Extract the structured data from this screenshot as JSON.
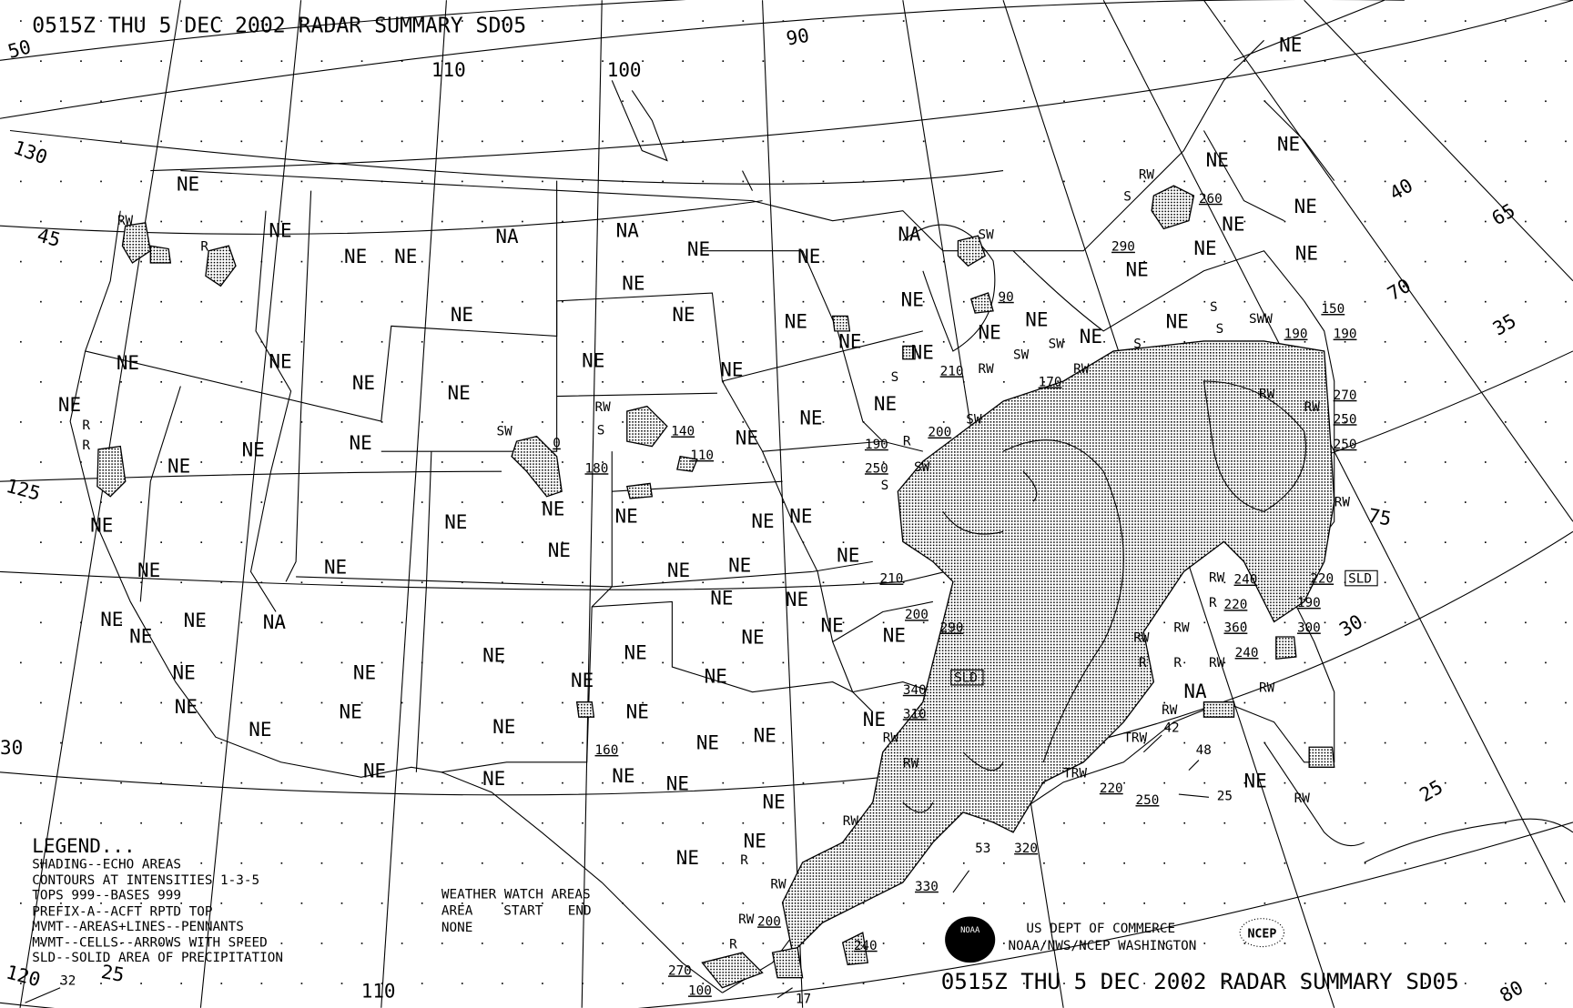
{
  "header": {
    "title": "0515Z THU  5 DEC 2002 RADAR SUMMARY SD05"
  },
  "footer": {
    "title": "0515Z THU  5 DEC 2002 RADAR SUMMARY SD05",
    "agency_line1": "US DEPT OF COMMERCE",
    "agency_line2": "NOAA/NWS/NCEP WASHINGTON",
    "noaa_logo_text": "NOAA",
    "ncep_logo_text": "NCEP"
  },
  "legend": {
    "title": "LEGEND...",
    "lines": [
      "SHADING--ECHO AREAS",
      "CONTOURS AT INTENSITIES 1-3-5",
      "TOPS 999--BASES 999",
      "PREFIX-A--ACFT RPTD TOP",
      "MVMT--AREAS+LINES--PENNANTS",
      "MVMT--CELLS--ARROWS WITH SPEED",
      "SLD--SOLID AREA OF PRECIPITATION"
    ]
  },
  "watch_areas": {
    "title": "WEATHER WATCH AREAS",
    "columns": [
      "AREA",
      "START",
      "END"
    ],
    "value": "NONE"
  },
  "graticule_labels": [
    "50",
    "130",
    "45",
    "125",
    "120",
    "30",
    "25",
    "110",
    "110",
    "100",
    "90",
    "40",
    "65",
    "70",
    "35",
    "75",
    "30",
    "25",
    "80"
  ],
  "region_labels": [
    "NE",
    "NE",
    "NE",
    "NE",
    "NE",
    "NE",
    "NE",
    "NE",
    "NE",
    "NE",
    "NE",
    "NE",
    "NE",
    "NE",
    "NE",
    "NE",
    "NE",
    "NE",
    "NE",
    "NE",
    "NE",
    "NE",
    "NE",
    "NE",
    "NE",
    "NA",
    "NE",
    "NE",
    "NE",
    "NE",
    "NE",
    "NE",
    "NE",
    "NE",
    "NE",
    "NE",
    "NE",
    "NE",
    "NE",
    "NE",
    "NE",
    "NE",
    "NE",
    "NE",
    "NE",
    "NE",
    "NE",
    "NE",
    "NE",
    "NE",
    "NE",
    "NE",
    "NE",
    "NE",
    "NE",
    "NE",
    "NE",
    "NE",
    "NA",
    "NA",
    "NE",
    "NE",
    "NA",
    "NE",
    "NE",
    "NE",
    "NE",
    "NE",
    "NE",
    "NE",
    "NE",
    "NE",
    "NE",
    "NE",
    "NE",
    "NE",
    "NE",
    "NE",
    "NE",
    "NE",
    "NE",
    "NE",
    "NA",
    "NE",
    "NE"
  ],
  "echo_tops": [
    "260",
    "290",
    "150",
    "190",
    "190",
    "270",
    "250",
    "250",
    "140",
    "110",
    "180",
    "0",
    "210",
    "170",
    "200",
    "190",
    "250",
    "210",
    "200",
    "290",
    "220",
    "360",
    "240",
    "220",
    "190",
    "300",
    "240",
    "340",
    "310",
    "220",
    "250",
    "320",
    "330",
    "240",
    "270",
    "100",
    "200",
    "160",
    "90"
  ],
  "precip_types": [
    "RW",
    "R",
    "R",
    "R",
    "SW",
    "RW",
    "S",
    "S",
    "RW",
    "S",
    "S",
    "SW",
    "SW",
    "RW",
    "RW",
    "RW",
    "RW",
    "S",
    "SW",
    "R",
    "RW",
    "RW",
    "RW",
    "RW",
    "R",
    "R",
    "R",
    "RW",
    "RW",
    "RW",
    "RW",
    "TRW",
    "TRW",
    "RW",
    "RW",
    "RW",
    "RW",
    "R",
    "RW",
    "R",
    "S",
    "SWW",
    "S",
    "SW",
    "SW"
  ],
  "solid_area_labels": [
    "SLD",
    "SLD"
  ],
  "cell_speeds": [
    "42",
    "48",
    "25",
    "53",
    "17",
    "32"
  ],
  "colors": {
    "ink": "#000000",
    "background": "#ffffff",
    "echo_shading": "#8c8c8c"
  }
}
